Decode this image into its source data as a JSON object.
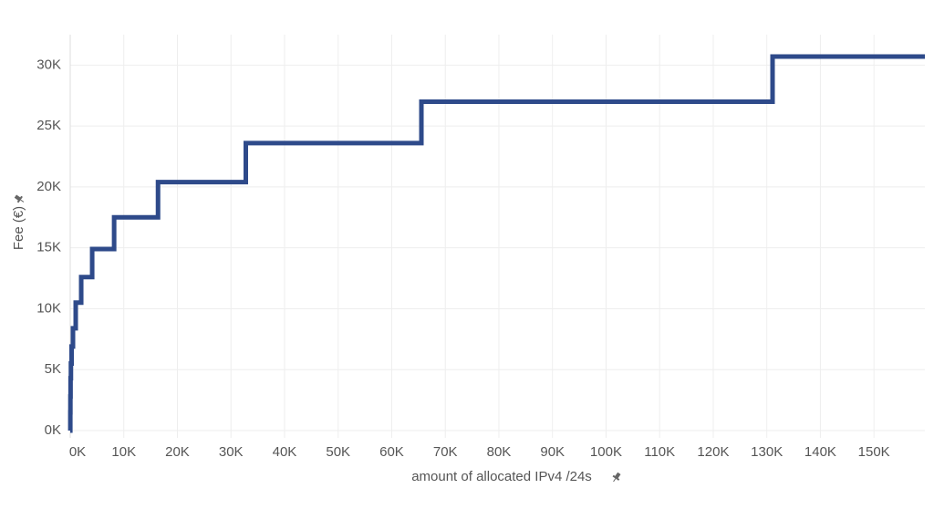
{
  "chart_data": {
    "type": "line",
    "line_shape": "hv",
    "x_label": "amount of allocated IPv4 /24s",
    "y_label": "Fee (€)",
    "x": [
      0,
      16,
      32,
      64,
      128,
      256,
      512,
      1024,
      2048,
      4096,
      8192,
      16384,
      32768,
      65536,
      131072,
      159500
    ],
    "series": [
      {
        "color": "#2e4a8a",
        "values": [
          0,
          1500,
          2800,
          4300,
          5500,
          6900,
          8400,
          10500,
          12600,
          14900,
          17500,
          20400,
          23600,
          27000,
          30700,
          30700
        ]
      }
    ],
    "xlim": [
      0,
      159500
    ],
    "ylim": [
      -600,
      32500
    ],
    "xticks": [
      {
        "value": 0,
        "label": "0K"
      },
      {
        "value": 10000,
        "label": "10K"
      },
      {
        "value": 20000,
        "label": "20K"
      },
      {
        "value": 30000,
        "label": "30K"
      },
      {
        "value": 40000,
        "label": "40K"
      },
      {
        "value": 50000,
        "label": "50K"
      },
      {
        "value": 60000,
        "label": "60K"
      },
      {
        "value": 70000,
        "label": "70K"
      },
      {
        "value": 80000,
        "label": "80K"
      },
      {
        "value": 90000,
        "label": "90K"
      },
      {
        "value": 100000,
        "label": "100K"
      },
      {
        "value": 110000,
        "label": "110K"
      },
      {
        "value": 120000,
        "label": "120K"
      },
      {
        "value": 130000,
        "label": "130K"
      },
      {
        "value": 140000,
        "label": "140K"
      },
      {
        "value": 150000,
        "label": "150K"
      }
    ],
    "yticks": [
      {
        "value": 0,
        "label": "0K"
      },
      {
        "value": 5000,
        "label": "5K"
      },
      {
        "value": 10000,
        "label": "10K"
      },
      {
        "value": 15000,
        "label": "15K"
      },
      {
        "value": 20000,
        "label": "20K"
      },
      {
        "value": 25000,
        "label": "25K"
      },
      {
        "value": 30000,
        "label": "30K"
      }
    ],
    "grid": true
  }
}
